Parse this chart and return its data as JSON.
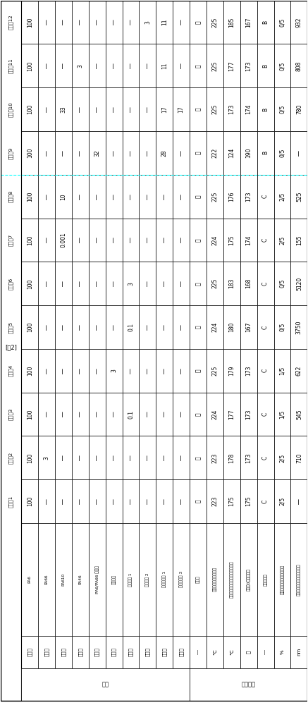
{
  "tag": "[表2]",
  "row_headers": [
    "比较例12",
    "比较例11",
    "比较例10",
    "比较例9",
    "比较例8",
    "比较例7",
    "比较例6",
    "比较例5",
    "比较例4",
    "比较例3",
    "比较例2",
    "比较例1"
  ],
  "col_groups": [
    {
      "group": "组成",
      "cols": [
        {
          "label": "PA6",
          "unit": "重量份"
        },
        {
          "label": "PA66",
          "unit": "重量份"
        },
        {
          "label": "PA610",
          "unit": "重量份"
        },
        {
          "label": "PA46",
          "unit": "重量份"
        },
        {
          "label": "PA6/PA66 共聚物",
          "unit": "重量份"
        },
        {
          "label": "有机抗刑",
          "unit": "重量份"
        },
        {
          "label": "无机抗刑 1",
          "unit": "重量份"
        },
        {
          "label": "无机抗刑 2",
          "unit": "重量份"
        },
        {
          "label": "冲击展材料 1",
          "unit": "重量份"
        },
        {
          "label": "冲击展材料 3",
          "unit": "重量份"
        }
      ]
    },
    {
      "group": "评价结果",
      "cols": [
        {
          "label": "缺陷点",
          "unit": "―"
        },
        {
          "label": "聚酰胺脚组合物的熔点",
          "unit": "℃"
        },
        {
          "label": "聚酰胺脚组合物的降温结晶化温度",
          "unit": "℃"
        },
        {
          "label": "不变形0的上升时间",
          "unit": "秒"
        },
        {
          "label": "耐热循环性",
          "unit": "―"
        },
        {
          "label": "异向拉伸成型片的拉伸特性",
          "unit": "%"
        },
        {
          "label": "结晶化促进剑的平均分散半径",
          "unit": "nm"
        }
      ]
    }
  ],
  "data": [
    [
      "100",
      "―",
      "―",
      "―",
      "―",
      "―",
      "―",
      "3",
      "11",
      "―",
      "有",
      "225",
      "185",
      "167",
      "B",
      "0/5",
      "932"
    ],
    [
      "100",
      "―",
      "―",
      "3",
      "―",
      "―",
      "―",
      "―",
      "11",
      "―",
      "有",
      "225",
      "177",
      "173",
      "B",
      "0/5",
      "808"
    ],
    [
      "100",
      "―",
      "33",
      "―",
      "―",
      "―",
      "―",
      "―",
      "17",
      "17",
      "有",
      "225",
      "173",
      "174",
      "B",
      "0/5",
      "780"
    ],
    [
      "100",
      "―",
      "―",
      "―",
      "32",
      "―",
      "―",
      "―",
      "28",
      "―",
      "有",
      "222",
      "124",
      "190",
      "B",
      "0/5",
      "―"
    ],
    [
      "100",
      "―",
      "10",
      "―",
      "―",
      "―",
      "―",
      "―",
      "―",
      "―",
      "有",
      "225",
      "176",
      "173",
      "C",
      "2/5",
      "525"
    ],
    [
      "100",
      "―",
      "0.001",
      "―",
      "―",
      "―",
      "―",
      "―",
      "―",
      "―",
      "有",
      "224",
      "175",
      "174",
      "C",
      "2/5",
      "155"
    ],
    [
      "100",
      "―",
      "―",
      "―",
      "―",
      "―",
      "3",
      "―",
      "―",
      "―",
      "有",
      "225",
      "183",
      "168",
      "C",
      "0/5",
      "5120"
    ],
    [
      "100",
      "―",
      "―",
      "―",
      "―",
      "―",
      "0.1",
      "―",
      "―",
      "―",
      "有",
      "224",
      "180",
      "167",
      "C",
      "0/5",
      "3750"
    ],
    [
      "100",
      "―",
      "―",
      "―",
      "―",
      "3",
      "―",
      "―",
      "―",
      "―",
      "有",
      "225",
      "179",
      "173",
      "C",
      "1/5",
      "622"
    ],
    [
      "100",
      "―",
      "―",
      "―",
      "―",
      "―",
      "0.1",
      "―",
      "―",
      "―",
      "有",
      "224",
      "177",
      "173",
      "C",
      "1/5",
      "545"
    ],
    [
      "100",
      "3",
      "―",
      "―",
      "―",
      "―",
      "―",
      "―",
      "―",
      "―",
      "有",
      "223",
      "178",
      "173",
      "C",
      "2/5",
      "710"
    ],
    [
      "100",
      "―",
      "―",
      "―",
      "―",
      "―",
      "―",
      "―",
      "―",
      "―",
      "有",
      "223",
      "175",
      "175",
      "C",
      "2/5",
      "―"
    ]
  ],
  "dashed_row_after": 3
}
